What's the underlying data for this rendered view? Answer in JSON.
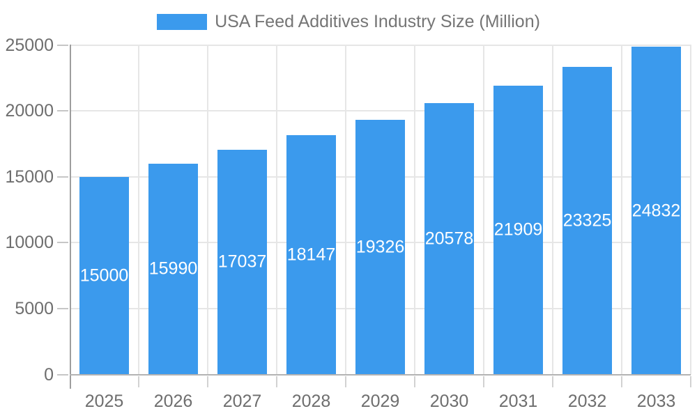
{
  "chart_data": {
    "type": "bar",
    "title": "USA Feed Additives Industry Size (Million)",
    "categories": [
      "2025",
      "2026",
      "2027",
      "2028",
      "2029",
      "2030",
      "2031",
      "2032",
      "2033"
    ],
    "series": [
      {
        "name": "USA Feed Additives Industry Size (Million)",
        "values": [
          15000,
          15990,
          17037,
          18147,
          19326,
          20578,
          21909,
          23325,
          24832
        ]
      }
    ],
    "xlabel": "",
    "ylabel": "",
    "ylim": [
      0,
      25000
    ],
    "yticks": [
      0,
      5000,
      10000,
      15000,
      20000,
      25000
    ],
    "grid": "on",
    "legend_position": "top-center",
    "value_labels": "inside-center-white",
    "colors": {
      "bar": "#3B9AED",
      "gridline": "#e6e6e6",
      "axis_y": "#9e9e9e",
      "axis_x": "#b3b3b3",
      "tick_mark_y": "#c6c6c6",
      "tick_mark_x": "#d2d2d2",
      "tick_label": "#6e6e6e",
      "legend_label": "#757575",
      "value_label": "#ffffff",
      "background": "#ffffff"
    }
  }
}
